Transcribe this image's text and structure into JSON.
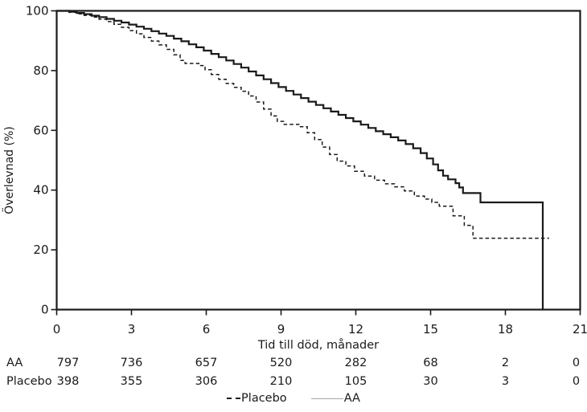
{
  "figure": {
    "background": "#ffffff",
    "line_color": "#1a1a1a",
    "placebo_dash_color": "#1a1a1a",
    "legend_aa_sample_color": "#a6a6a6"
  },
  "chart_data": {
    "type": "line",
    "subtype": "kaplan-meier-step",
    "title": "",
    "xlabel": "Tid till död, månader",
    "ylabel": "Överlevnad (%)",
    "xlim": [
      0,
      21
    ],
    "ylim": [
      0,
      100
    ],
    "x_ticks": [
      0,
      3,
      6,
      9,
      12,
      15,
      18,
      21
    ],
    "y_ticks": [
      0,
      20,
      40,
      60,
      80,
      100
    ],
    "grid": false,
    "legend_position": "bottom-center",
    "series": [
      {
        "name": "AA",
        "style": "solid",
        "color": "#1a1a1a",
        "points": [
          [
            0,
            100
          ],
          [
            0.5,
            99.7
          ],
          [
            0.8,
            99.3
          ],
          [
            1.1,
            98.9
          ],
          [
            1.4,
            98.4
          ],
          [
            1.7,
            97.9
          ],
          [
            2.0,
            97.3
          ],
          [
            2.3,
            96.7
          ],
          [
            2.6,
            96.1
          ],
          [
            2.9,
            95.4
          ],
          [
            3.2,
            94.7
          ],
          [
            3.5,
            94.0
          ],
          [
            3.8,
            93.2
          ],
          [
            4.1,
            92.4
          ],
          [
            4.4,
            91.6
          ],
          [
            4.7,
            90.7
          ],
          [
            5.0,
            89.8
          ],
          [
            5.3,
            88.8
          ],
          [
            5.6,
            87.8
          ],
          [
            5.9,
            86.7
          ],
          [
            6.2,
            85.6
          ],
          [
            6.5,
            84.5
          ],
          [
            6.8,
            83.4
          ],
          [
            7.1,
            82.2
          ],
          [
            7.4,
            81.0
          ],
          [
            7.7,
            79.7
          ],
          [
            8.0,
            78.4
          ],
          [
            8.3,
            77.1
          ],
          [
            8.6,
            75.8
          ],
          [
            8.9,
            74.5
          ],
          [
            9.2,
            73.2
          ],
          [
            9.5,
            72.0
          ],
          [
            9.8,
            70.8
          ],
          [
            10.1,
            69.6
          ],
          [
            10.4,
            68.5
          ],
          [
            10.7,
            67.4
          ],
          [
            11.0,
            66.3
          ],
          [
            11.3,
            65.2
          ],
          [
            11.6,
            64.1
          ],
          [
            11.9,
            63.0
          ],
          [
            12.2,
            61.9
          ],
          [
            12.5,
            60.8
          ],
          [
            12.8,
            59.7
          ],
          [
            13.1,
            58.7
          ],
          [
            13.4,
            57.7
          ],
          [
            13.7,
            56.6
          ],
          [
            14.0,
            55.4
          ],
          [
            14.3,
            54.0
          ],
          [
            14.6,
            52.4
          ],
          [
            14.85,
            50.6
          ],
          [
            15.1,
            48.6
          ],
          [
            15.3,
            46.6
          ],
          [
            15.5,
            44.8
          ],
          [
            15.7,
            43.6
          ],
          [
            16.0,
            42.3
          ],
          [
            16.15,
            40.9
          ],
          [
            16.3,
            39.0
          ],
          [
            17.0,
            35.9
          ],
          [
            19.5,
            0
          ]
        ]
      },
      {
        "name": "Placebo",
        "style": "dashed",
        "color": "#1a1a1a",
        "points": [
          [
            0,
            100
          ],
          [
            0.5,
            99.5
          ],
          [
            0.8,
            99.0
          ],
          [
            1.1,
            98.5
          ],
          [
            1.4,
            97.9
          ],
          [
            1.7,
            97.2
          ],
          [
            2.0,
            96.4
          ],
          [
            2.3,
            95.5
          ],
          [
            2.6,
            94.5
          ],
          [
            2.9,
            93.4
          ],
          [
            3.2,
            92.3
          ],
          [
            3.5,
            91.1
          ],
          [
            3.8,
            89.9
          ],
          [
            4.1,
            88.6
          ],
          [
            4.4,
            87.1
          ],
          [
            4.7,
            85.3
          ],
          [
            4.95,
            83.4
          ],
          [
            5.15,
            82.4
          ],
          [
            5.7,
            81.7
          ],
          [
            5.95,
            80.3
          ],
          [
            6.2,
            78.7
          ],
          [
            6.5,
            77.1
          ],
          [
            6.8,
            75.7
          ],
          [
            7.1,
            74.4
          ],
          [
            7.4,
            73.1
          ],
          [
            7.7,
            71.5
          ],
          [
            8.0,
            69.5
          ],
          [
            8.3,
            67.1
          ],
          [
            8.6,
            64.8
          ],
          [
            8.85,
            63.0
          ],
          [
            9.1,
            62.0
          ],
          [
            9.75,
            61.2
          ],
          [
            10.05,
            59.2
          ],
          [
            10.35,
            56.9
          ],
          [
            10.65,
            54.4
          ],
          [
            10.95,
            51.9
          ],
          [
            11.25,
            49.7
          ],
          [
            11.6,
            48.1
          ],
          [
            11.95,
            46.3
          ],
          [
            12.35,
            44.7
          ],
          [
            12.75,
            43.3
          ],
          [
            13.15,
            42.1
          ],
          [
            13.55,
            41.1
          ],
          [
            13.95,
            39.7
          ],
          [
            14.35,
            38.0
          ],
          [
            14.75,
            37.0
          ],
          [
            15.05,
            35.9
          ],
          [
            15.35,
            34.6
          ],
          [
            15.9,
            31.4
          ],
          [
            16.35,
            28.2
          ],
          [
            16.7,
            23.9
          ],
          [
            19.75,
            23.9
          ]
        ]
      }
    ],
    "risk_table": {
      "rows": [
        {
          "label": "AA",
          "values": [
            "797",
            "736",
            "657",
            "520",
            "282",
            "68",
            "2",
            "0"
          ]
        },
        {
          "label": "Placebo",
          "values": [
            "398",
            "355",
            "306",
            "210",
            "105",
            "30",
            "3",
            "0"
          ]
        }
      ]
    },
    "legend": [
      {
        "label": "Placebo",
        "sample": "dashed-black"
      },
      {
        "label": "AA",
        "sample": "solid-gray"
      }
    ]
  }
}
